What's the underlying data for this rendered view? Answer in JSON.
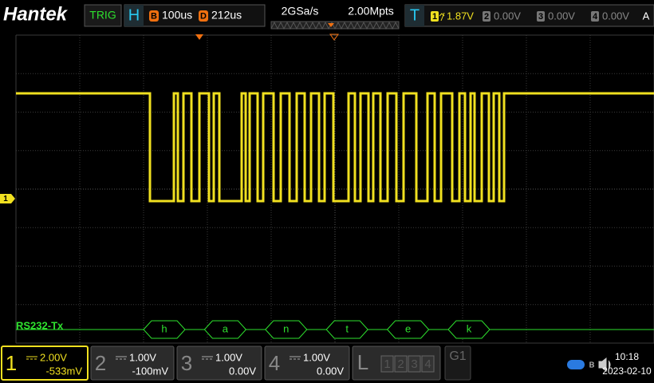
{
  "header": {
    "logo": "Hantek",
    "trig_button": "TRIG",
    "horizontal": {
      "label": "H",
      "timebase_icon": "B",
      "timebase": "100us",
      "delay_icon": "D",
      "delay": "212us"
    },
    "acquisition": {
      "sample_rate": "2GSa/s",
      "memory_depth": "2.00Mpts"
    },
    "trigger": {
      "label": "T",
      "source": "1",
      "level": "1.87V",
      "channels": [
        {
          "id": "2",
          "level": "0.00V"
        },
        {
          "id": "3",
          "level": "0.00V"
        },
        {
          "id": "4",
          "level": "0.00V"
        }
      ],
      "mode": "A"
    }
  },
  "waveform": {
    "channel_marker": "1",
    "decode_label": "RS232-Tx",
    "decoded": [
      "h",
      "a",
      "n",
      "t",
      "e",
      "k"
    ]
  },
  "footer": {
    "channels": [
      {
        "id": "1",
        "scale": "2.00V",
        "offset": "-533mV"
      },
      {
        "id": "2",
        "scale": "1.00V",
        "offset": "-100mV"
      },
      {
        "id": "3",
        "scale": "1.00V",
        "offset": "0.00V"
      },
      {
        "id": "4",
        "scale": "1.00V",
        "offset": "0.00V"
      }
    ],
    "logic": {
      "label": "L",
      "channels": [
        "1",
        "2",
        "3",
        "4"
      ]
    },
    "group": "G1",
    "time": "10:18",
    "date": "2023-02-10"
  }
}
